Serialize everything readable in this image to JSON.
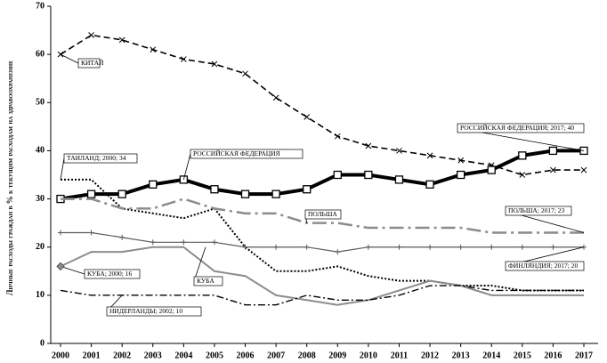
{
  "chart_data": {
    "type": "line",
    "y_label": "Личные расходы граждан в % к текущим расходам на здравоохранение",
    "categories": [
      "2000",
      "2001",
      "2002",
      "2003",
      "2004",
      "2005",
      "2006",
      "2007",
      "2008",
      "2009",
      "2010",
      "2011",
      "2012",
      "2013",
      "2014",
      "2015",
      "2016",
      "2017"
    ],
    "ylim": [
      0,
      70
    ],
    "yticks": [
      0,
      10,
      20,
      30,
      40,
      50,
      60,
      70
    ],
    "grid": false,
    "series": [
      {
        "name": "КИТАЙ",
        "color": "#000000",
        "line_style": "dashed",
        "marker": "x",
        "values": [
          60,
          64,
          63,
          61,
          59,
          58,
          56,
          51,
          47,
          43,
          41,
          40,
          39,
          38,
          37,
          35,
          36,
          36
        ]
      },
      {
        "name": "РОССИЙСКАЯ ФЕДЕРАЦИЯ",
        "color": "#000000",
        "line_style": "thick",
        "marker": "square",
        "values": [
          30,
          31,
          31,
          33,
          34,
          32,
          31,
          31,
          32,
          35,
          35,
          34,
          33,
          35,
          36,
          39,
          40,
          40
        ]
      },
      {
        "color": "#000000",
        "line_style": "dotted",
        "marker": "none",
        "values": [
          34,
          34,
          28,
          27,
          26,
          28,
          20,
          15,
          15,
          16,
          14,
          13,
          13,
          12,
          12,
          11,
          11,
          11
        ]
      },
      {
        "name": "ПОЛЬША",
        "color": "#8c8c8c",
        "line_style": "longdashdot",
        "marker": "none",
        "values": [
          30,
          30,
          28,
          28,
          30,
          28,
          27,
          27,
          25,
          25,
          24,
          24,
          24,
          24,
          23,
          23,
          23,
          23
        ]
      },
      {
        "color": "#5a5a5a",
        "line_style": "thin",
        "marker": "plus",
        "values": [
          23,
          23,
          22,
          21,
          21,
          21,
          20,
          20,
          20,
          19,
          20,
          20,
          20,
          20,
          20,
          20,
          20,
          20
        ]
      },
      {
        "name": "КУБА",
        "color": "#8c8c8c",
        "line_style": "solid",
        "marker": "none",
        "values": [
          16,
          19,
          19,
          20,
          20,
          15,
          14,
          10,
          9,
          8,
          9,
          11,
          13,
          12,
          10,
          10,
          10,
          10
        ]
      },
      {
        "color": "#000000",
        "line_style": "dashdot",
        "marker": "none",
        "values": [
          11,
          10,
          10,
          10,
          10,
          10,
          8,
          8,
          10,
          9,
          9,
          10,
          12,
          12,
          11,
          11,
          11,
          11
        ]
      }
    ],
    "annotations": [
      "ТАИЛАНД; 2000; 34",
      "РОССИЙСКАЯ ФЕДЕРАЦИЯ; 2017; 40",
      "ПОЛЬША; 2017; 23",
      "ФИНЛЯНДИЯ; 2017; 20",
      "КУБА; 2000; 16",
      "НИДЕРЛАНДЫ; 2002; 10"
    ]
  }
}
